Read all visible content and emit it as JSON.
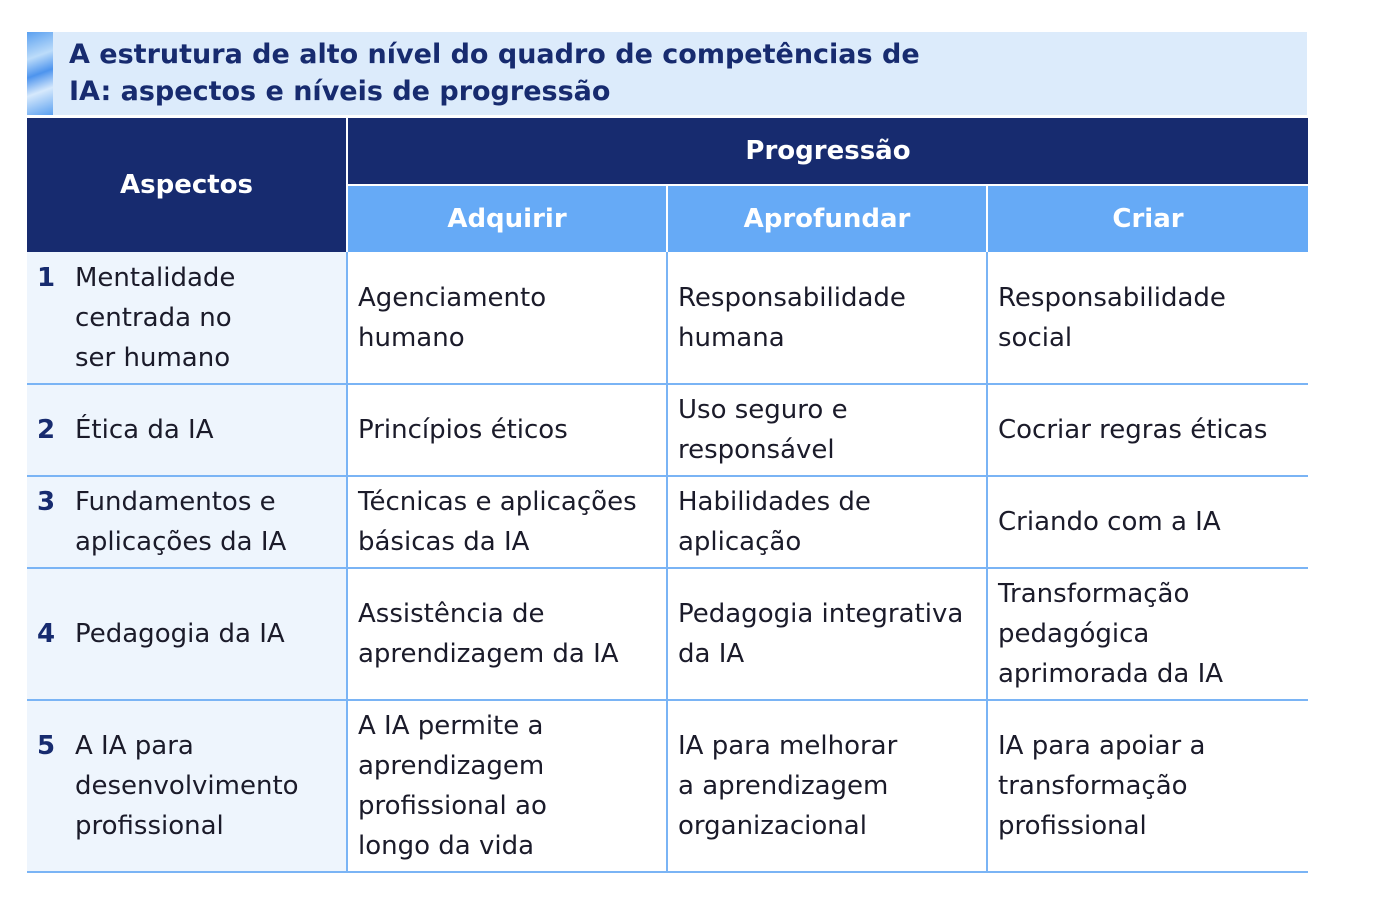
{
  "title": "A estrutura de alto nível do quadro de competências de IA: aspectos e níveis de progressão",
  "headers": {
    "aspects": "Aspectos",
    "progression": "Progressão",
    "levels": [
      "Adquirir",
      "Aprofundar",
      "Criar"
    ]
  },
  "rows": [
    {
      "num": "1",
      "aspect": "Mentalidade centrada no ser humano",
      "cells": [
        "Agenciamento humano",
        "Responsabilidade humana",
        "Responsabilidade social"
      ]
    },
    {
      "num": "2",
      "aspect": "Ética da IA",
      "cells": [
        "Princípios éticos",
        "Uso seguro e responsável",
        "Cocriar regras éticas"
      ]
    },
    {
      "num": "3",
      "aspect": "Fundamentos e aplicações da IA",
      "cells": [
        "Técnicas e aplicações básicas da IA",
        "Habilidades de aplicação",
        "Criando com a IA"
      ]
    },
    {
      "num": "4",
      "aspect": "Pedagogia da IA",
      "cells": [
        "Assistência de aprendizagem da IA",
        "Pedagogia integrativa da IA",
        "Transformação pedagógica aprimorada da IA"
      ]
    },
    {
      "num": "5",
      "aspect": "A IA para desenvolvimento profissional",
      "cells": [
        "A IA permite a aprendizagem profissional ao longo da vida",
        "IA para melhorar a aprendizagem organizacional",
        "IA para apoiar a transformação profissional"
      ]
    }
  ]
}
